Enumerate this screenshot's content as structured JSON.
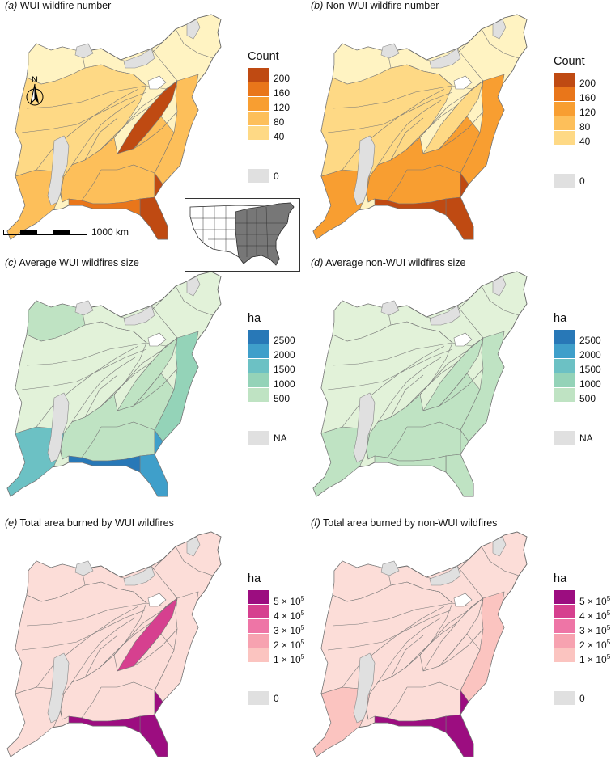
{
  "colors": {
    "count": [
      "#fff3c2",
      "#fed985",
      "#fdbf5a",
      "#f89e31",
      "#e9761a",
      "#bf4a12"
    ],
    "size": [
      "#e2f2d9",
      "#bfe3c3",
      "#94d3b8",
      "#6cc1c4",
      "#3f9fca",
      "#2878b7"
    ],
    "area": [
      "#fcddd8",
      "#fbc4c0",
      "#f7a2b0",
      "#ee75a6",
      "#d6408f",
      "#9c0d80"
    ],
    "zero": "#e0e0e0"
  },
  "panels": [
    {
      "letter": "(a)",
      "title": "WUI wildfire number",
      "legend_title": "Count",
      "legend_labels": [
        "200",
        "160",
        "120",
        "80",
        "40"
      ],
      "zero_label": "0",
      "regions": {
        "west": 2,
        "center": 1,
        "ridge": 5,
        "nw": 0,
        "coast": 2,
        "south": 2,
        "florida": 5,
        "gulf": 4
      }
    },
    {
      "letter": "(b)",
      "title": "Non-WUI wildfire number",
      "legend_title": "Count",
      "legend_labels": [
        "200",
        "160",
        "120",
        "80",
        "40"
      ],
      "zero_label": "0",
      "regions": {
        "west": 3,
        "center": 1,
        "ridge": 1,
        "nw": 0,
        "coast": 3,
        "south": 3,
        "florida": 5,
        "gulf": 5
      }
    },
    {
      "letter": "(c)",
      "title": "Average WUI wildfires size",
      "legend_title": "ha",
      "legend_labels": [
        "2500",
        "2000",
        "1500",
        "1000",
        "500"
      ],
      "zero_label": "NA",
      "regions": {
        "west": 3,
        "center": 0,
        "ridge": 1,
        "nw": 1,
        "coast": 2,
        "south": 1,
        "florida": 4,
        "gulf": 5
      }
    },
    {
      "letter": "(d)",
      "title": "Average non-WUI wildfires size",
      "legend_title": "ha",
      "legend_labels": [
        "2500",
        "2000",
        "1500",
        "1000",
        "500"
      ],
      "zero_label": "NA",
      "regions": {
        "west": 1,
        "center": 0,
        "ridge": 1,
        "nw": 0,
        "coast": 1,
        "south": 1,
        "florida": 1,
        "gulf": 1
      }
    },
    {
      "letter": "(e)",
      "title": "Total area burned by WUI wildfires",
      "legend_title": "ha",
      "legend_labels": [
        "5 × 10",
        "4 × 10",
        "3 × 10",
        "2 × 10",
        "1 × 10"
      ],
      "legend_exp": "5",
      "zero_label": "0",
      "regions": {
        "west": 0,
        "center": 0,
        "ridge": 4,
        "nw": 0,
        "coast": 0,
        "south": 0,
        "florida": 5,
        "gulf": 5
      }
    },
    {
      "letter": "(f)",
      "title": "Total area burned by non-WUI wildfires",
      "legend_title": "ha",
      "legend_labels": [
        "5 × 10",
        "4 × 10",
        "3 × 10",
        "2 × 10",
        "1 × 10"
      ],
      "legend_exp": "5",
      "zero_label": "0",
      "regions": {
        "west": 1,
        "center": 0,
        "ridge": 0,
        "nw": 0,
        "coast": 1,
        "south": 0,
        "florida": 5,
        "gulf": 5
      }
    }
  ],
  "scale_bar": {
    "label": "1000 km"
  },
  "north_arrow": {
    "label": "N"
  }
}
